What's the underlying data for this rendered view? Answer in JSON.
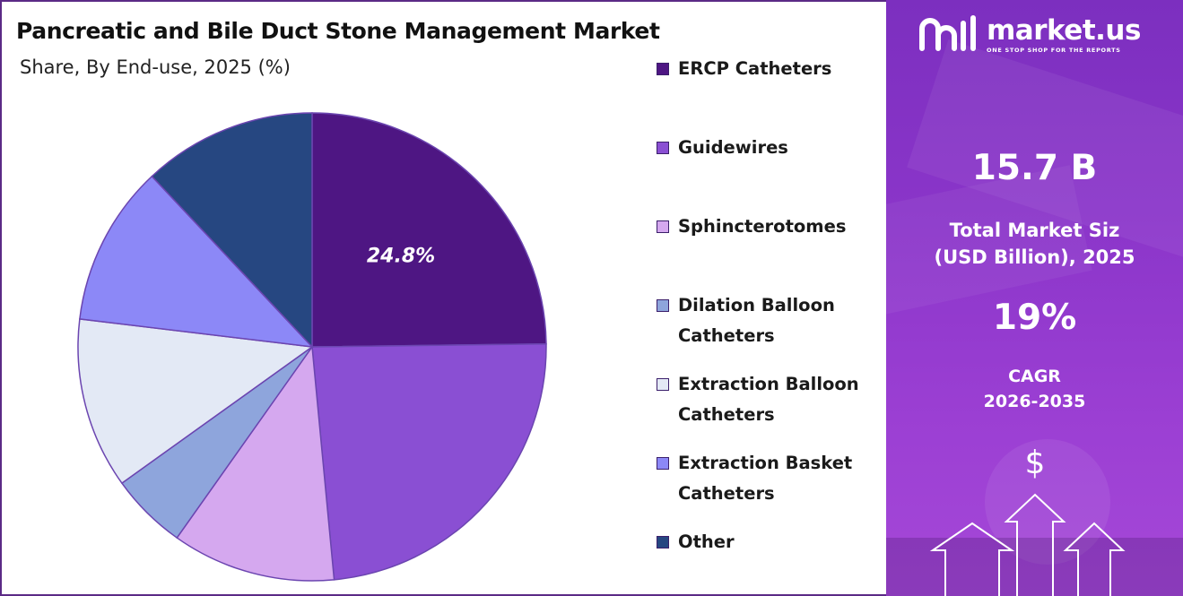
{
  "header": {
    "title": "Pancreatic and Bile Duct Stone Management Market",
    "subtitle": "Share, By End-use, 2025 (%)"
  },
  "chart_data": {
    "type": "pie",
    "categories": [
      "ERCP Catheters",
      "Guidewires",
      "Sphincterotomes",
      "Dilation Balloon Catheters",
      "Extraction Balloon Catheters",
      "Extraction Basket Catheters",
      "Other"
    ],
    "values": [
      24.8,
      23.7,
      11.3,
      5.3,
      11.8,
      11.1,
      12.0
    ],
    "colors": [
      "#4e1683",
      "#8a4fd3",
      "#d5a8ef",
      "#8ea5dc",
      "#e3e9f5",
      "#8c88f7",
      "#264781"
    ],
    "data_labels": [
      "24.8%",
      "",
      "",
      "",
      "",
      "",
      ""
    ],
    "legend_position": "right",
    "start_angle": "12 o'clock, clockwise"
  },
  "legend": {
    "items": [
      {
        "lines": [
          "ERCP Catheters"
        ],
        "color": "#4e1683"
      },
      {
        "lines": [
          "Guidewires"
        ],
        "color": "#8a4fd3"
      },
      {
        "lines": [
          "Sphincterotomes"
        ],
        "color": "#d5a8ef"
      },
      {
        "lines": [
          "Dilation Balloon",
          "Catheters"
        ],
        "color": "#8ea5dc"
      },
      {
        "lines": [
          "Extraction Balloon",
          "Catheters"
        ],
        "color": "#e3e9f5"
      },
      {
        "lines": [
          "Extraction Basket",
          "Catheters"
        ],
        "color": "#8c88f7"
      },
      {
        "lines": [
          "Other"
        ],
        "color": "#264781"
      }
    ]
  },
  "brand": {
    "name": "market.us",
    "tagline": "ONE STOP SHOP FOR THE REPORTS"
  },
  "stats": {
    "market_size_value": "15.7 B",
    "market_size_label_line1": "Total Market Siz",
    "market_size_label_line2": "(USD Billion), 2025",
    "cagr_value": "19%",
    "cagr_label_line1": "CAGR",
    "cagr_label_line2": "2026-2035",
    "currency_symbol": "$"
  },
  "icons": [
    "market-us-logo-icon",
    "dollar-icon",
    "up-arrow-icon"
  ]
}
